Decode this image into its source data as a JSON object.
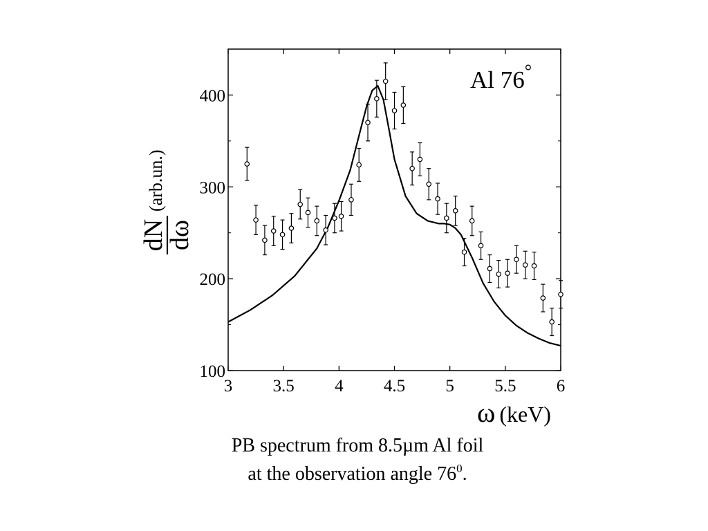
{
  "chart_data": {
    "type": "scatter",
    "annotation": "Al 76",
    "annotation_superscript": "°",
    "xlabel_symbol": "ω",
    "xlabel_unit": "(keV)",
    "ylabel_numerator": "dN",
    "ylabel_denominator": "dω",
    "ylabel_unit": "(arb.un.)",
    "xlim": [
      3,
      6
    ],
    "ylim": [
      100,
      450
    ],
    "x_ticks": [
      "3",
      "3.5",
      "4",
      "4.5",
      "5",
      "5.5",
      "6"
    ],
    "y_ticks": [
      "100",
      "200",
      "300",
      "400"
    ],
    "grid": false,
    "series": [
      {
        "kind": "points-with-error-bars",
        "x": [
          3.17,
          3.25,
          3.33,
          3.41,
          3.49,
          3.57,
          3.65,
          3.72,
          3.8,
          3.88,
          3.96,
          4.02,
          4.11,
          4.18,
          4.26,
          4.34,
          4.42,
          4.5,
          4.58,
          4.66,
          4.73,
          4.81,
          4.89,
          4.97,
          5.05,
          5.13,
          5.2,
          5.28,
          5.36,
          5.44,
          5.52,
          5.6,
          5.68,
          5.76,
          5.84,
          5.92,
          6.0
        ],
        "y": [
          325,
          264,
          242,
          252,
          248,
          255,
          281,
          272,
          263,
          253,
          266,
          268,
          286,
          324,
          370,
          396,
          415,
          383,
          389,
          320,
          330,
          303,
          287,
          266,
          274,
          229,
          263,
          236,
          211,
          205,
          206,
          221,
          215,
          214,
          179,
          153,
          183
        ],
        "error": [
          18,
          16,
          16,
          16,
          16,
          16,
          16,
          16,
          16,
          16,
          16,
          16,
          17,
          18,
          20,
          20,
          20,
          20,
          20,
          18,
          18,
          17,
          17,
          16,
          16,
          15,
          16,
          15,
          15,
          15,
          15,
          15,
          15,
          15,
          15,
          15,
          15
        ]
      },
      {
        "kind": "line",
        "x": [
          3.0,
          3.2,
          3.4,
          3.6,
          3.8,
          3.9,
          4.0,
          4.1,
          4.2,
          4.25,
          4.3,
          4.35,
          4.4,
          4.45,
          4.5,
          4.6,
          4.7,
          4.8,
          4.9,
          4.95,
          5.0,
          5.05,
          5.1,
          5.2,
          5.3,
          5.4,
          5.5,
          5.6,
          5.7,
          5.8,
          5.9,
          6.0
        ],
        "y": [
          153,
          166,
          182,
          203,
          233,
          256,
          285,
          318,
          365,
          388,
          405,
          410,
          395,
          363,
          330,
          290,
          271,
          263,
          260,
          260,
          259,
          255,
          248,
          223,
          195,
          175,
          160,
          149,
          141,
          135,
          130,
          127
        ]
      }
    ]
  },
  "caption": {
    "line1": "PB spectrum from 8.5µm Al foil",
    "line2_text": "at the observation angle 76",
    "line2_sup": "0",
    "line2_end": "."
  }
}
